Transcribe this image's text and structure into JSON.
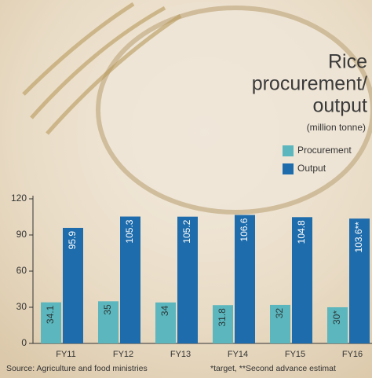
{
  "chart_data": {
    "type": "bar",
    "title": [
      "Rice",
      "procurement/",
      "output"
    ],
    "subtitle": "(million tonne)",
    "categories": [
      "FY11",
      "FY12",
      "FY13",
      "FY14",
      "FY15",
      "FY16"
    ],
    "series": [
      {
        "name": "Procurement",
        "color": "#5cb6bd",
        "values": [
          34.1,
          35,
          34,
          31.8,
          32,
          30
        ],
        "value_labels": [
          "34.1",
          "35",
          "34",
          "31.8",
          "32",
          "30*"
        ]
      },
      {
        "name": "Output",
        "color": "#1e6cab",
        "values": [
          95.9,
          105.3,
          105.2,
          106.6,
          104.8,
          103.6
        ],
        "value_labels": [
          "95.9",
          "105.3",
          "105.2",
          "106.6",
          "104.8",
          "103.6**"
        ]
      }
    ],
    "ylim": [
      0,
      120
    ],
    "yticks": [
      0,
      30,
      60,
      90,
      120
    ],
    "source": "Source: Agriculture and food ministries",
    "note": "*target, **Second advance estimat"
  }
}
